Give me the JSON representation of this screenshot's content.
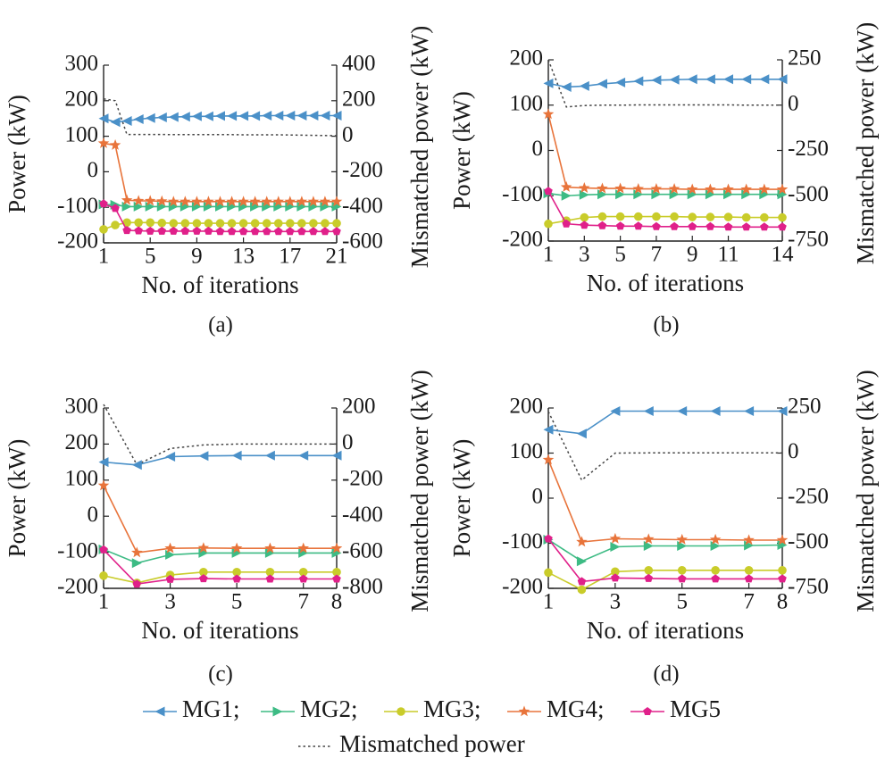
{
  "legend": {
    "entries": [
      {
        "name": "MG1;",
        "color": "#4a90c8",
        "marker": "triangle-left"
      },
      {
        "name": "MG2;",
        "color": "#3dbb84",
        "marker": "triangle-right"
      },
      {
        "name": "MG3;",
        "color": "#c9cc2a",
        "marker": "circle"
      },
      {
        "name": "MG4;",
        "color": "#e8743b",
        "marker": "star"
      },
      {
        "name": "MG5",
        "color": "#e0208a",
        "marker": "pentagon"
      }
    ],
    "mismatch_label": "Mismatched power",
    "mismatch_color": "#444444"
  },
  "chart_data": [
    {
      "type": "line",
      "panel_label": "(a)",
      "xlabel": "No. of iterations",
      "ylabel": "Power (kW)",
      "y2label": "Mismatched power (kW)",
      "xlim": [
        1,
        21
      ],
      "xticks": [
        1,
        5,
        9,
        13,
        17,
        21
      ],
      "ylim": [
        -200,
        300
      ],
      "yticks": [
        -200,
        -100,
        0,
        100,
        200,
        300
      ],
      "y2lim": [
        -600,
        400
      ],
      "y2ticks": [
        -600,
        -400,
        -200,
        0,
        200,
        400
      ],
      "x": [
        1,
        2,
        3,
        4,
        5,
        6,
        7,
        8,
        9,
        10,
        11,
        12,
        13,
        14,
        15,
        16,
        17,
        18,
        19,
        20,
        21
      ],
      "series": [
        {
          "name": "MG1",
          "values": [
            150,
            140,
            143,
            148,
            151,
            153,
            154,
            155,
            156,
            156,
            157,
            157,
            157,
            157,
            158,
            158,
            158,
            158,
            158,
            158,
            158
          ]
        },
        {
          "name": "MG2",
          "values": [
            -92,
            -93,
            -98,
            -98,
            -98,
            -98,
            -98,
            -98,
            -98,
            -98,
            -98,
            -98,
            -98,
            -98,
            -98,
            -98,
            -98,
            -98,
            -98,
            -98,
            -98
          ]
        },
        {
          "name": "MG3",
          "values": [
            -162,
            -150,
            -143,
            -143,
            -143,
            -144,
            -145,
            -145,
            -145,
            -145,
            -145,
            -145,
            -145,
            -145,
            -145,
            -145,
            -145,
            -145,
            -145,
            -145,
            -145
          ]
        },
        {
          "name": "MG4",
          "values": [
            80,
            75,
            -80,
            -82,
            -82,
            -83,
            -84,
            -84,
            -84,
            -84,
            -84,
            -84,
            -84,
            -84,
            -84,
            -84,
            -84,
            -84,
            -84,
            -84,
            -84
          ]
        },
        {
          "name": "MG5",
          "values": [
            -90,
            -103,
            -165,
            -166,
            -167,
            -167,
            -167,
            -167,
            -167,
            -167,
            -168,
            -168,
            -168,
            -168,
            -168,
            -168,
            -168,
            -168,
            -168,
            -168,
            -168
          ]
        }
      ],
      "mismatch": [
        210,
        200,
        10,
        10,
        10,
        10,
        9,
        9,
        9,
        9,
        9,
        9,
        8,
        8,
        8,
        8,
        7,
        6,
        5,
        4,
        3
      ]
    },
    {
      "type": "line",
      "panel_label": "(b)",
      "xlabel": "No. of iterations",
      "ylabel": "Power (kW)",
      "y2label": "Mismatched power (kW)",
      "xlim": [
        1,
        14
      ],
      "xticks": [
        1,
        3,
        5,
        7,
        9,
        11,
        14
      ],
      "ylim": [
        -200,
        200
      ],
      "yticks": [
        -200,
        -100,
        0,
        100,
        200
      ],
      "y2lim": [
        -750,
        250
      ],
      "y2ticks": [
        -750,
        -500,
        -250,
        0,
        250
      ],
      "x": [
        1,
        2,
        3,
        4,
        5,
        6,
        7,
        8,
        9,
        10,
        11,
        12,
        13,
        14
      ],
      "series": [
        {
          "name": "MG1",
          "values": [
            148,
            140,
            142,
            147,
            150,
            153,
            155,
            156,
            157,
            157,
            157,
            157,
            157,
            157
          ]
        },
        {
          "name": "MG2",
          "values": [
            -95,
            -100,
            -98,
            -97,
            -97,
            -97,
            -97,
            -97,
            -97,
            -97,
            -97,
            -97,
            -97,
            -97
          ]
        },
        {
          "name": "MG3",
          "values": [
            -162,
            -155,
            -148,
            -146,
            -146,
            -146,
            -146,
            -146,
            -147,
            -147,
            -147,
            -148,
            -148,
            -148
          ]
        },
        {
          "name": "MG4",
          "values": [
            80,
            -81,
            -83,
            -84,
            -84,
            -85,
            -85,
            -85,
            -86,
            -86,
            -86,
            -86,
            -86,
            -86
          ]
        },
        {
          "name": "MG5",
          "values": [
            -90,
            -162,
            -165,
            -166,
            -167,
            -167,
            -168,
            -168,
            -168,
            -168,
            -169,
            -169,
            -169,
            -169
          ]
        }
      ],
      "mismatch": [
        250,
        -10,
        -2,
        0,
        0,
        1,
        1,
        1,
        1,
        1,
        1,
        0,
        0,
        0
      ]
    },
    {
      "type": "line",
      "panel_label": "(c)",
      "xlabel": "No. of iterations",
      "ylabel": "Power (kW)",
      "y2label": "Mismatched power (kW)",
      "xlim": [
        1,
        8
      ],
      "xticks": [
        1,
        3,
        5,
        7,
        8
      ],
      "ylim": [
        -200,
        300
      ],
      "yticks": [
        -200,
        -100,
        0,
        100,
        200,
        300
      ],
      "y2lim": [
        -800,
        200
      ],
      "y2ticks": [
        -800,
        -600,
        -400,
        -200,
        0,
        200
      ],
      "x": [
        1,
        2,
        3,
        4,
        5,
        6,
        7,
        8
      ],
      "series": [
        {
          "name": "MG1",
          "values": [
            150,
            142,
            165,
            167,
            168,
            168,
            168,
            168
          ]
        },
        {
          "name": "MG2",
          "values": [
            -92,
            -130,
            -107,
            -102,
            -102,
            -102,
            -102,
            -102
          ]
        },
        {
          "name": "MG3",
          "values": [
            -165,
            -185,
            -163,
            -155,
            -155,
            -155,
            -155,
            -155
          ]
        },
        {
          "name": "MG4",
          "values": [
            85,
            -101,
            -89,
            -88,
            -89,
            -89,
            -89,
            -89
          ]
        },
        {
          "name": "MG5",
          "values": [
            -93,
            -188,
            -175,
            -173,
            -174,
            -174,
            -174,
            -174
          ]
        }
      ],
      "mismatch": [
        220,
        -115,
        -25,
        -5,
        0,
        0,
        0,
        0
      ]
    },
    {
      "type": "line",
      "panel_label": "(d)",
      "xlabel": "No. of iterations",
      "ylabel": "Power (kW)",
      "y2label": "Mismatched power (kW)",
      "xlim": [
        1,
        8
      ],
      "xticks": [
        1,
        3,
        5,
        7,
        8
      ],
      "ylim": [
        -200,
        200
      ],
      "yticks": [
        -200,
        -100,
        0,
        100,
        200
      ],
      "y2lim": [
        -750,
        250
      ],
      "y2ticks": [
        -750,
        -500,
        -250,
        0,
        250
      ],
      "x": [
        1,
        2,
        3,
        4,
        5,
        6,
        7,
        8
      ],
      "series": [
        {
          "name": "MG1",
          "values": [
            152,
            143,
            193,
            193,
            193,
            193,
            193,
            193
          ]
        },
        {
          "name": "MG2",
          "values": [
            -92,
            -140,
            -108,
            -106,
            -106,
            -106,
            -105,
            -104
          ]
        },
        {
          "name": "MG3",
          "values": [
            -165,
            -203,
            -163,
            -160,
            -160,
            -160,
            -160,
            -160
          ]
        },
        {
          "name": "MG4",
          "values": [
            85,
            -97,
            -90,
            -91,
            -92,
            -92,
            -93,
            -93
          ]
        },
        {
          "name": "MG5",
          "values": [
            -90,
            -185,
            -177,
            -178,
            -179,
            -179,
            -179,
            -179
          ]
        }
      ],
      "mismatch": [
        230,
        -150,
        0,
        1,
        1,
        1,
        1,
        1
      ]
    }
  ]
}
